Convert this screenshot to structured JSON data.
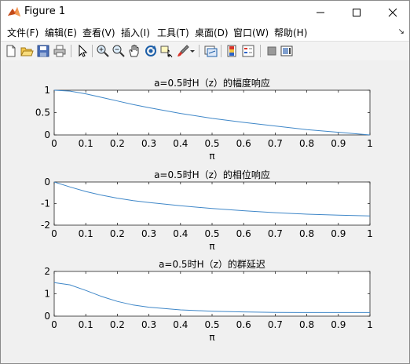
{
  "window": {
    "title": "Figure 1",
    "minimize_symbol": "—",
    "maximize_symbol": "☐",
    "close_symbol": "✕"
  },
  "menu": {
    "items": [
      "文件(F)",
      "编辑(E)",
      "查看(V)",
      "插入(I)",
      "工具(T)",
      "桌面(D)",
      "窗口(W)",
      "帮助(H)"
    ]
  },
  "toolbar": {
    "icons": [
      "new-figure-icon",
      "open-file-icon",
      "save-icon",
      "print-icon",
      "pointer-icon",
      "zoom-in-icon",
      "zoom-out-icon",
      "pan-icon",
      "rotate-3d-icon",
      "data-cursor-icon",
      "brush-icon",
      "brush-dropdown-icon",
      "link-plot-icon",
      "colorbar-icon",
      "legend-icon",
      "hide-plot-tools-icon",
      "show-plot-tools-icon"
    ]
  },
  "colors": {
    "line": "#3f87c8",
    "axes_bg": "#ffffff",
    "figure_bg": "#f0f0f0"
  },
  "chart_data": [
    {
      "type": "line",
      "title": "a=0.5时H（z）的幅度响应",
      "xlabel": "π",
      "ylabel": "",
      "xlim": [
        0,
        1
      ],
      "ylim": [
        0,
        1
      ],
      "xticks": [
        "0",
        "0.1",
        "0.2",
        "0.3",
        "0.4",
        "0.5",
        "0.6",
        "0.7",
        "0.8",
        "0.9",
        "1"
      ],
      "yticks": [
        "0",
        "0.5",
        "1"
      ],
      "x": [
        0,
        0.05,
        0.1,
        0.15,
        0.2,
        0.25,
        0.3,
        0.4,
        0.5,
        0.6,
        0.7,
        0.8,
        0.9,
        1.0
      ],
      "y": [
        1.0,
        0.98,
        0.92,
        0.84,
        0.76,
        0.68,
        0.61,
        0.48,
        0.37,
        0.28,
        0.2,
        0.12,
        0.06,
        0.0
      ]
    },
    {
      "type": "line",
      "title": "a=0.5时H（z）的相位响应",
      "xlabel": "π",
      "ylabel": "",
      "xlim": [
        0,
        1
      ],
      "ylim": [
        -2,
        0
      ],
      "xticks": [
        "0",
        "0.1",
        "0.2",
        "0.3",
        "0.4",
        "0.5",
        "0.6",
        "0.7",
        "0.8",
        "0.9",
        "1"
      ],
      "yticks": [
        "-2",
        "-1",
        "0"
      ],
      "x": [
        0,
        0.05,
        0.1,
        0.15,
        0.2,
        0.25,
        0.3,
        0.4,
        0.5,
        0.6,
        0.7,
        0.8,
        0.9,
        1.0
      ],
      "y": [
        0,
        -0.23,
        -0.44,
        -0.61,
        -0.75,
        -0.86,
        -0.95,
        -1.1,
        -1.23,
        -1.33,
        -1.42,
        -1.49,
        -1.54,
        -1.57
      ]
    },
    {
      "type": "line",
      "title": "a=0.5时H（z）的群延迟",
      "xlabel": "π",
      "ylabel": "",
      "xlim": [
        0,
        1
      ],
      "ylim": [
        0,
        2
      ],
      "xticks": [
        "0",
        "0.1",
        "0.2",
        "0.3",
        "0.4",
        "0.5",
        "0.6",
        "0.7",
        "0.8",
        "0.9",
        "1"
      ],
      "yticks": [
        "0",
        "1",
        "2"
      ],
      "x": [
        0,
        0.05,
        0.1,
        0.15,
        0.2,
        0.25,
        0.3,
        0.4,
        0.5,
        0.6,
        0.7,
        0.8,
        0.9,
        1.0
      ],
      "y": [
        1.5,
        1.4,
        1.15,
        0.88,
        0.66,
        0.5,
        0.4,
        0.28,
        0.22,
        0.19,
        0.17,
        0.16,
        0.16,
        0.16
      ]
    }
  ]
}
